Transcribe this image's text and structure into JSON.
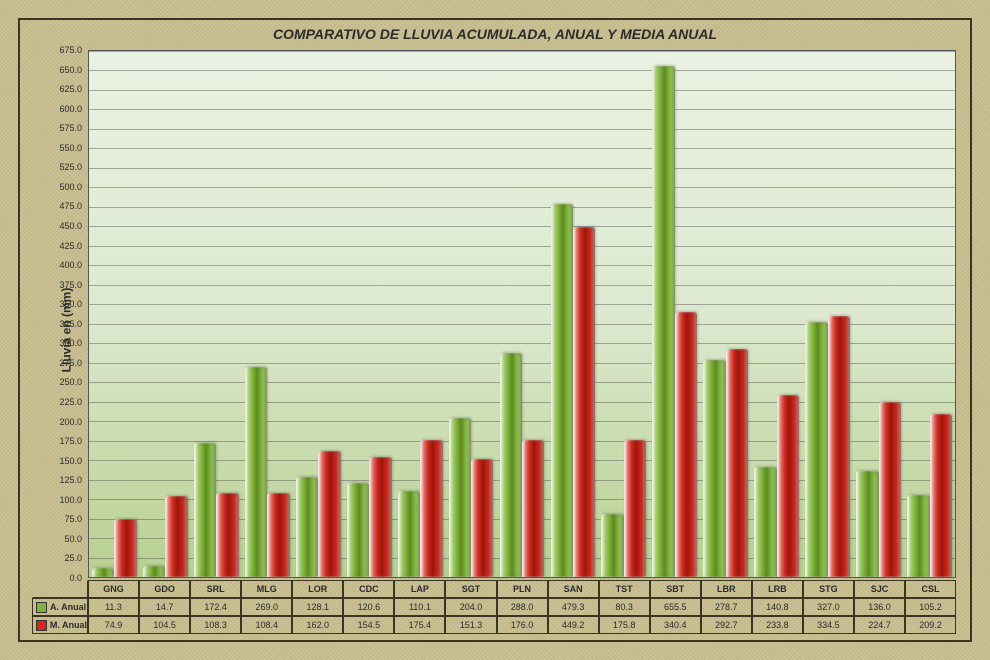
{
  "chart": {
    "type": "bar-grouped",
    "title": "COMPARATIVO DE LLUVIA ACUMULADA, ANUAL Y MEDIA ANUAL",
    "ylabel": "Lluvia en (mm)",
    "ylim": [
      0,
      675
    ],
    "ytick_step": 25,
    "frame_bg": "#c7bd8f",
    "plot_bg_top": "#eaf1e2",
    "plot_bg_bottom": "#b8d090",
    "border_color": "#3a3520",
    "grid_color": "rgba(80,80,80,0.45)",
    "title_fontsize": 14,
    "label_fontsize": 12,
    "tick_fontsize": 9,
    "categories": [
      "GNG",
      "GDO",
      "SRL",
      "MLG",
      "LOR",
      "CDC",
      "LAP",
      "SGT",
      "PLN",
      "SAN",
      "TST",
      "SBT",
      "LBR",
      "LRB",
      "STG",
      "SJC",
      "CSL"
    ],
    "series": [
      {
        "name": "A. Anual",
        "color_main": "#7fb23a",
        "color_dark": "#5c8a1f",
        "color_light": "#cfe6b0",
        "values": [
          11.3,
          14.7,
          172.4,
          269.0,
          128.1,
          120.6,
          110.1,
          204.0,
          288.0,
          479.3,
          80.3,
          655.5,
          278.7,
          140.8,
          327.0,
          136.0,
          105.2
        ]
      },
      {
        "name": "M. Anual",
        "color_main": "#cc2a1e",
        "color_dark": "#9e150c",
        "color_light": "#f4bdb6",
        "values": [
          74.9,
          104.5,
          108.3,
          108.4,
          162.0,
          154.5,
          175.4,
          151.3,
          176.0,
          449.2,
          175.8,
          340.4,
          292.7,
          233.8,
          334.5,
          224.7,
          209.2
        ]
      }
    ]
  }
}
